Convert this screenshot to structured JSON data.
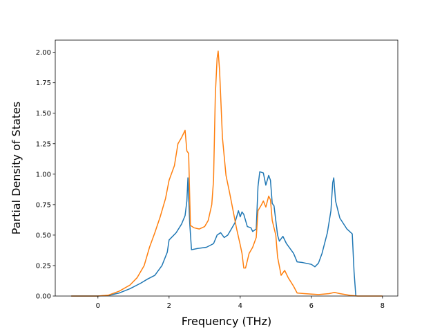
{
  "chart_data": {
    "type": "line",
    "title": "",
    "xlabel": "Frequency (THz)",
    "ylabel": "Partial Density of States",
    "xlim": [
      -1.2,
      8.43
    ],
    "ylim": [
      0,
      2.1
    ],
    "xticks": [
      0,
      2,
      4,
      6,
      8
    ],
    "yticks": [
      0.0,
      0.25,
      0.5,
      0.75,
      1.0,
      1.25,
      1.5,
      1.75,
      2.0
    ],
    "xtick_labels": [
      "0",
      "2",
      "4",
      "6",
      "8"
    ],
    "ytick_labels": [
      "0.00",
      "0.25",
      "0.50",
      "0.75",
      "1.00",
      "1.25",
      "1.50",
      "1.75",
      "2.00"
    ],
    "grid": false,
    "legend": "none",
    "series": [
      {
        "color": "#1f77b4",
        "points": [
          [
            -0.75,
            0
          ],
          [
            0,
            0
          ],
          [
            0.3,
            0.005
          ],
          [
            0.6,
            0.025
          ],
          [
            0.9,
            0.06
          ],
          [
            1.2,
            0.105
          ],
          [
            1.4,
            0.14
          ],
          [
            1.6,
            0.17
          ],
          [
            1.8,
            0.25
          ],
          [
            1.95,
            0.36
          ],
          [
            2.0,
            0.46
          ],
          [
            2.2,
            0.52
          ],
          [
            2.35,
            0.59
          ],
          [
            2.45,
            0.66
          ],
          [
            2.5,
            0.78
          ],
          [
            2.53,
            0.97
          ],
          [
            2.58,
            0.6
          ],
          [
            2.63,
            0.38
          ],
          [
            2.8,
            0.39
          ],
          [
            3.05,
            0.4
          ],
          [
            3.25,
            0.43
          ],
          [
            3.35,
            0.5
          ],
          [
            3.45,
            0.52
          ],
          [
            3.55,
            0.48
          ],
          [
            3.65,
            0.5
          ],
          [
            3.75,
            0.55
          ],
          [
            3.85,
            0.6
          ],
          [
            3.95,
            0.7
          ],
          [
            4.0,
            0.65
          ],
          [
            4.05,
            0.69
          ],
          [
            4.1,
            0.67
          ],
          [
            4.2,
            0.57
          ],
          [
            4.3,
            0.56
          ],
          [
            4.35,
            0.53
          ],
          [
            4.45,
            0.55
          ],
          [
            4.5,
            0.9
          ],
          [
            4.55,
            1.02
          ],
          [
            4.65,
            1.01
          ],
          [
            4.72,
            0.91
          ],
          [
            4.8,
            0.99
          ],
          [
            4.85,
            0.95
          ],
          [
            4.9,
            0.76
          ],
          [
            4.95,
            0.74
          ],
          [
            5.05,
            0.5
          ],
          [
            5.1,
            0.45
          ],
          [
            5.2,
            0.49
          ],
          [
            5.3,
            0.43
          ],
          [
            5.5,
            0.35
          ],
          [
            5.6,
            0.28
          ],
          [
            5.75,
            0.275
          ],
          [
            6.0,
            0.26
          ],
          [
            6.1,
            0.24
          ],
          [
            6.2,
            0.27
          ],
          [
            6.3,
            0.35
          ],
          [
            6.45,
            0.52
          ],
          [
            6.55,
            0.7
          ],
          [
            6.6,
            0.93
          ],
          [
            6.63,
            0.97
          ],
          [
            6.68,
            0.78
          ],
          [
            6.8,
            0.64
          ],
          [
            7.0,
            0.55
          ],
          [
            7.15,
            0.51
          ],
          [
            7.2,
            0.2
          ],
          [
            7.25,
            0.0
          ]
        ]
      },
      {
        "color": "#ff7f0e",
        "points": [
          [
            -0.75,
            0
          ],
          [
            0,
            0
          ],
          [
            0.3,
            0.008
          ],
          [
            0.6,
            0.04
          ],
          [
            0.9,
            0.09
          ],
          [
            1.1,
            0.15
          ],
          [
            1.3,
            0.25
          ],
          [
            1.45,
            0.4
          ],
          [
            1.6,
            0.52
          ],
          [
            1.75,
            0.65
          ],
          [
            1.9,
            0.8
          ],
          [
            2.0,
            0.95
          ],
          [
            2.15,
            1.07
          ],
          [
            2.25,
            1.25
          ],
          [
            2.35,
            1.3
          ],
          [
            2.45,
            1.36
          ],
          [
            2.5,
            1.19
          ],
          [
            2.55,
            1.17
          ],
          [
            2.6,
            0.58
          ],
          [
            2.7,
            0.56
          ],
          [
            2.85,
            0.55
          ],
          [
            3.0,
            0.57
          ],
          [
            3.1,
            0.62
          ],
          [
            3.2,
            0.75
          ],
          [
            3.25,
            0.95
          ],
          [
            3.3,
            1.65
          ],
          [
            3.35,
            1.95
          ],
          [
            3.38,
            2.01
          ],
          [
            3.42,
            1.85
          ],
          [
            3.5,
            1.3
          ],
          [
            3.6,
            0.99
          ],
          [
            3.7,
            0.85
          ],
          [
            3.8,
            0.7
          ],
          [
            3.9,
            0.55
          ],
          [
            4.0,
            0.42
          ],
          [
            4.05,
            0.35
          ],
          [
            4.1,
            0.23
          ],
          [
            4.15,
            0.23
          ],
          [
            4.25,
            0.35
          ],
          [
            4.35,
            0.4
          ],
          [
            4.45,
            0.48
          ],
          [
            4.5,
            0.7
          ],
          [
            4.6,
            0.75
          ],
          [
            4.65,
            0.78
          ],
          [
            4.72,
            0.73
          ],
          [
            4.8,
            0.82
          ],
          [
            4.85,
            0.79
          ],
          [
            4.9,
            0.62
          ],
          [
            5.0,
            0.5
          ],
          [
            5.05,
            0.32
          ],
          [
            5.15,
            0.17
          ],
          [
            5.25,
            0.21
          ],
          [
            5.35,
            0.15
          ],
          [
            5.5,
            0.08
          ],
          [
            5.6,
            0.025
          ],
          [
            5.8,
            0.02
          ],
          [
            6.2,
            0.012
          ],
          [
            6.5,
            0.02
          ],
          [
            6.65,
            0.03
          ],
          [
            6.8,
            0.02
          ],
          [
            7.1,
            0.005
          ],
          [
            7.3,
            0.0
          ],
          [
            8.0,
            0.0
          ]
        ]
      }
    ]
  }
}
